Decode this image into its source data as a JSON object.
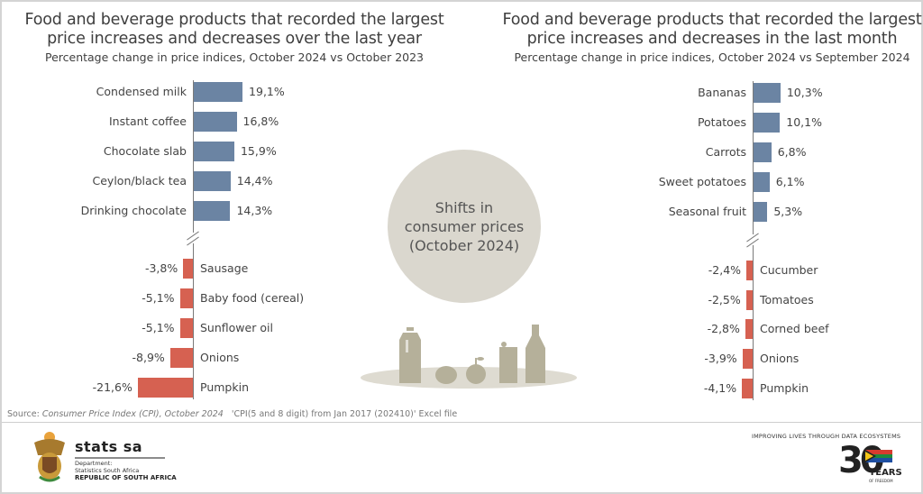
{
  "left_chart": {
    "title_line1": "Food and beverage products that recorded the largest",
    "title_line2": "price increases and decreases over the last year",
    "subtitle": "Percentage change in price indices, October 2024 vs October 2023",
    "increases": [
      {
        "label": "Condensed milk",
        "value_label": "19,1%"
      },
      {
        "label": "Instant coffee",
        "value_label": "16,8%"
      },
      {
        "label": "Chocolate slab",
        "value_label": "15,9%"
      },
      {
        "label": "Ceylon/black tea",
        "value_label": "14,4%"
      },
      {
        "label": "Drinking chocolate",
        "value_label": "14,3%"
      }
    ],
    "decreases": [
      {
        "label": "Sausage",
        "value_label": "-3,8%"
      },
      {
        "label": "Baby food (cereal)",
        "value_label": "-5,1%"
      },
      {
        "label": "Sunflower oil",
        "value_label": "-5,1%"
      },
      {
        "label": "Onions",
        "value_label": "-8,9%"
      },
      {
        "label": "Pumpkin",
        "value_label": "-21,6%"
      }
    ]
  },
  "right_chart": {
    "title_line1": "Food and beverage products that recorded the largest",
    "title_line2": "price increases and decreases in the last month",
    "subtitle": "Percentage change in price indices, October 2024 vs September 2024",
    "increases": [
      {
        "label": "Bananas",
        "value_label": "10,3%"
      },
      {
        "label": "Potatoes",
        "value_label": "10,1%"
      },
      {
        "label": "Carrots",
        "value_label": "6,8%"
      },
      {
        "label": "Sweet potatoes",
        "value_label": "6,1%"
      },
      {
        "label": "Seasonal fruit",
        "value_label": "5,3%"
      }
    ],
    "decreases": [
      {
        "label": "Cucumber",
        "value_label": "-2,4%"
      },
      {
        "label": "Tomatoes",
        "value_label": "-2,5%"
      },
      {
        "label": "Corned beef",
        "value_label": "-2,8%"
      },
      {
        "label": "Onions",
        "value_label": "-3,9%"
      },
      {
        "label": "Pumpkin",
        "value_label": "-4,1%"
      }
    ]
  },
  "center": {
    "line1": "Shifts in",
    "line2": "consumer prices",
    "line3": "(October 2024)"
  },
  "source": {
    "prefix": "Source: ",
    "publication": "Consumer Price Index (CPI), October 2024",
    "file": "'CPI(5 and 8 digit) from Jan 2017 (202410)' Excel file"
  },
  "footer": {
    "logo_name": "stats sa",
    "dept_line1": "Department:",
    "dept_line2": "Statistics South Africa",
    "dept_line3": "REPUBLIC OF SOUTH AFRICA",
    "tagline": "IMPROVING LIVES THROUGH DATA ECOSYSTEMS",
    "anniversary_number": "30",
    "anniversary_years": "YEARS",
    "anniversary_sub": "OF FREEDOM"
  },
  "colors": {
    "increase": "#6b84a3",
    "decrease": "#d66151",
    "circle": "#dad7ce",
    "icons": "#b5b09a",
    "table": "#dedbd1"
  },
  "chart_data": [
    {
      "type": "bar",
      "orientation": "horizontal",
      "title": "Food and beverage products that recorded the largest price increases and decreases over the last year",
      "subtitle": "Percentage change in price indices, October 2024 vs October 2023",
      "categories": [
        "Condensed milk",
        "Instant coffee",
        "Chocolate slab",
        "Ceylon/black tea",
        "Drinking chocolate",
        "Sausage",
        "Baby food (cereal)",
        "Sunflower oil",
        "Onions",
        "Pumpkin"
      ],
      "values": [
        19.1,
        16.8,
        15.9,
        14.4,
        14.3,
        -3.8,
        -5.1,
        -5.1,
        -8.9,
        -21.6
      ],
      "unit": "%",
      "axis_break": true,
      "grid": false
    },
    {
      "type": "bar",
      "orientation": "horizontal",
      "title": "Food and beverage products that recorded the largest price increases and decreases in the last month",
      "subtitle": "Percentage change in price indices, October 2024 vs September 2024",
      "categories": [
        "Bananas",
        "Potatoes",
        "Carrots",
        "Sweet potatoes",
        "Seasonal fruit",
        "Cucumber",
        "Tomatoes",
        "Corned beef",
        "Onions",
        "Pumpkin"
      ],
      "values": [
        10.3,
        10.1,
        6.8,
        6.1,
        5.3,
        -2.4,
        -2.5,
        -2.8,
        -3.9,
        -4.1
      ],
      "unit": "%",
      "axis_break": true,
      "grid": false
    }
  ]
}
